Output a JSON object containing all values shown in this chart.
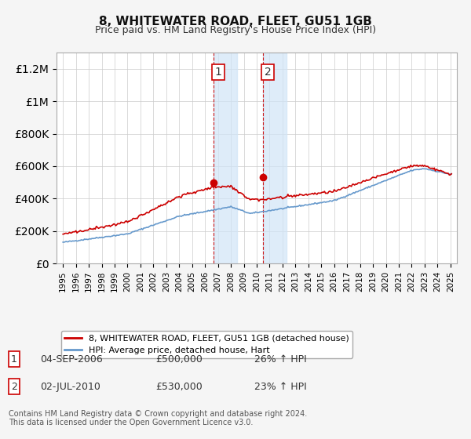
{
  "title": "8, WHITEWATER ROAD, FLEET, GU51 1GB",
  "subtitle": "Price paid vs. HM Land Registry's House Price Index (HPI)",
  "red_label": "8, WHITEWATER ROAD, FLEET, GU51 1GB (detached house)",
  "blue_label": "HPI: Average price, detached house, Hart",
  "footer": "Contains HM Land Registry data © Crown copyright and database right 2024.\nThis data is licensed under the Open Government Licence v3.0.",
  "transaction1": {
    "num": "1",
    "date": "04-SEP-2006",
    "price": "£500,000",
    "hpi": "26% ↑ HPI"
  },
  "transaction2": {
    "num": "2",
    "date": "02-JUL-2010",
    "price": "£530,000",
    "hpi": "23% ↑ HPI"
  },
  "shade1_start": 2006.67,
  "shade1_end": 2008.5,
  "shade2_start": 2010.5,
  "shade2_end": 2012.3,
  "marker1_x": 2006.67,
  "marker1_y": 500000,
  "marker2_x": 2010.5,
  "marker2_y": 530000,
  "ylim": [
    0,
    1300000
  ],
  "xlim_start": 1994.5,
  "xlim_end": 2025.5,
  "background_color": "#f5f5f5",
  "plot_background": "#ffffff",
  "red_color": "#cc0000",
  "blue_color": "#6699cc",
  "shade_color": "#d0e4f7",
  "grid_color": "#cccccc",
  "base_hpi": 130000,
  "base_red": 175000
}
